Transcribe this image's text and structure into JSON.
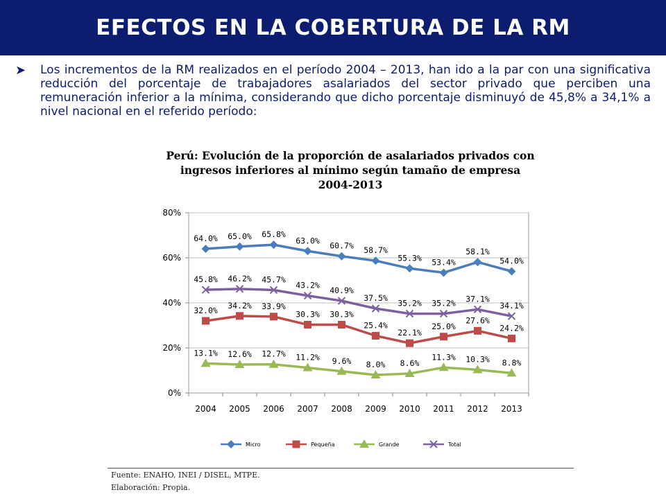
{
  "header": {
    "title": "EFECTOS EN LA COBERTURA DE LA RM"
  },
  "bullet": {
    "icon": "arrow-bullet-icon",
    "text": "Los incrementos de la RM realizados en el período 2004 – 2013, han ido a la par con una significativa reducción del porcentaje de trabajadores asalariados del sector privado que perciben una remuneración inferior a la mínima, considerando que dicho porcentaje disminuyó de 45,8% a 34,1% a nivel nacional en el referido período:"
  },
  "chart_data": {
    "type": "line",
    "title_lines": [
      "Perú: Evolución de la proporción de asalariados privados con",
      "ingresos inferiores al mínimo según tamaño de empresa",
      "2004-2013"
    ],
    "categories": [
      "2004",
      "2005",
      "2006",
      "2007",
      "2008",
      "2009",
      "2010",
      "2011",
      "2012",
      "2013"
    ],
    "ylim": [
      0,
      80
    ],
    "yticks": [
      0,
      20,
      40,
      60,
      80
    ],
    "ytick_labels": [
      "0%",
      "20%",
      "40%",
      "60%",
      "80%"
    ],
    "legend_position": "bottom",
    "series": [
      {
        "name": "Micro",
        "color": "#4a7ebb",
        "marker": "diamond",
        "values": [
          64.0,
          65.0,
          65.8,
          63.0,
          60.7,
          58.7,
          55.3,
          53.4,
          58.1,
          54.0
        ],
        "labels": [
          "64.0%",
          "65.0%",
          "65.8%",
          "63.0%",
          "60.7%",
          "58.7%",
          "55.3%",
          "53.4%",
          "58.1%",
          "54.0%"
        ]
      },
      {
        "name": "Pequeña",
        "color": "#be4b48",
        "marker": "square",
        "values": [
          32.0,
          34.2,
          33.9,
          30.3,
          30.3,
          25.4,
          22.1,
          25.0,
          27.6,
          24.2
        ],
        "labels": [
          "32.0%",
          "34.2%",
          "33.9%",
          "30.3%",
          "30.3%",
          "25.4%",
          "22.1%",
          "25.0%",
          "27.6%",
          "24.2%"
        ]
      },
      {
        "name": "Grande",
        "color": "#98b954",
        "marker": "triangle",
        "values": [
          13.1,
          12.6,
          12.7,
          11.2,
          9.6,
          8.0,
          8.6,
          11.3,
          10.3,
          8.8
        ],
        "labels": [
          "13.1%",
          "12.6%",
          "12.7%",
          "11.2%",
          "9.6%",
          "8.0%",
          "8.6%",
          "11.3%",
          "10.3%",
          "8.8%"
        ]
      },
      {
        "name": "Total",
        "color": "#7d60a0",
        "marker": "x",
        "values": [
          45.8,
          46.2,
          45.7,
          43.2,
          40.9,
          37.5,
          35.2,
          35.2,
          37.1,
          34.1
        ],
        "labels": [
          "45.8%",
          "46.2%",
          "45.7%",
          "43.2%",
          "40.9%",
          "37.5%",
          "35.2%",
          "35.2%",
          "37.1%",
          "34.1%"
        ]
      }
    ]
  },
  "footer": {
    "source": "Fuente: ENAHO, INEI / DISEL, MTPE.",
    "elaboration": "Elaboración: Propia."
  }
}
